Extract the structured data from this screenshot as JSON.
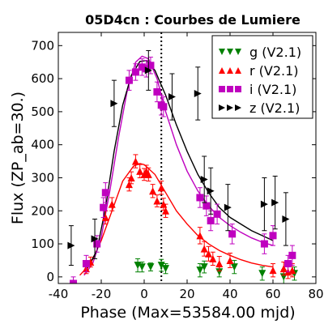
{
  "chart_data": {
    "type": "scatter",
    "title": "05D4cn : Courbes de Lumiere",
    "xlabel": "Phase (Max=53584.00 mjd)",
    "ylabel": "Flux (ZP_ab=30.)",
    "xlim": [
      -40,
      80
    ],
    "ylim": [
      -20,
      740
    ],
    "xticks": [
      -40,
      -20,
      0,
      20,
      40,
      60,
      80
    ],
    "yticks": [
      0,
      100,
      200,
      300,
      400,
      500,
      600,
      700
    ],
    "max_line_x": 8,
    "legend_position": "top-right",
    "series": [
      {
        "name": "g (V2.1)",
        "color": "#008000",
        "marker": "triangle-down",
        "points": [
          [
            -3,
            35
          ],
          [
            -1,
            30
          ],
          [
            3,
            30
          ],
          [
            8,
            35
          ],
          [
            10,
            25
          ],
          [
            26,
            20
          ],
          [
            28,
            30
          ],
          [
            35,
            15
          ],
          [
            42,
            30
          ],
          [
            55,
            10
          ],
          [
            65,
            0
          ],
          [
            70,
            10
          ]
        ],
        "errors": [
          20,
          15,
          12,
          18,
          15,
          20,
          18,
          15,
          20,
          20,
          22,
          20
        ]
      },
      {
        "name": "r (V2.1)",
        "color": "#ff0000",
        "marker": "triangle-up",
        "points": [
          [
            -27,
            25
          ],
          [
            -25,
            45
          ],
          [
            -18,
            180
          ],
          [
            -15,
            220
          ],
          [
            -7,
            280
          ],
          [
            -6,
            300
          ],
          [
            -4,
            350
          ],
          [
            -2,
            320
          ],
          [
            0,
            310
          ],
          [
            1,
            320
          ],
          [
            2,
            310
          ],
          [
            4,
            260
          ],
          [
            6,
            230
          ],
          [
            8,
            270
          ],
          [
            9,
            220
          ],
          [
            10,
            200
          ],
          [
            26,
            125
          ],
          [
            28,
            85
          ],
          [
            30,
            70
          ],
          [
            32,
            55
          ],
          [
            35,
            40
          ],
          [
            40,
            50
          ],
          [
            60,
            20
          ],
          [
            65,
            25
          ],
          [
            67,
            15
          ],
          [
            69,
            20
          ]
        ],
        "errors": [
          15,
          15,
          20,
          20,
          20,
          18,
          20,
          20,
          18,
          18,
          20,
          20,
          18,
          20,
          18,
          20,
          25,
          22,
          22,
          20,
          22,
          22,
          20,
          20,
          20,
          20
        ]
      },
      {
        "name": "i (V2.1)",
        "color": "#bf00bf",
        "marker": "square",
        "points": [
          [
            -33,
            -20
          ],
          [
            -27,
            40
          ],
          [
            -22,
            100
          ],
          [
            -19,
            210
          ],
          [
            -18,
            255
          ],
          [
            -7,
            595
          ],
          [
            -4,
            620
          ],
          [
            -1,
            635
          ],
          [
            1,
            630
          ],
          [
            3,
            640
          ],
          [
            6,
            560
          ],
          [
            8,
            520
          ],
          [
            9,
            515
          ],
          [
            26,
            240
          ],
          [
            29,
            215
          ],
          [
            31,
            170
          ],
          [
            34,
            190
          ],
          [
            41,
            130
          ],
          [
            56,
            100
          ],
          [
            60,
            125
          ],
          [
            67,
            40
          ],
          [
            69,
            65
          ]
        ],
        "errors": [
          20,
          25,
          25,
          30,
          30,
          30,
          25,
          25,
          25,
          25,
          30,
          30,
          30,
          30,
          30,
          30,
          30,
          30,
          30,
          30,
          25,
          30
        ]
      },
      {
        "name": "z (V2.1)",
        "color": "#000000",
        "marker": "triangle-right",
        "points": [
          [
            -34,
            95
          ],
          [
            -23,
            115
          ],
          [
            -14,
            525
          ],
          [
            2,
            625
          ],
          [
            13,
            545
          ],
          [
            25,
            555
          ],
          [
            28,
            295
          ],
          [
            31,
            260
          ],
          [
            39,
            210
          ],
          [
            56,
            220
          ],
          [
            61,
            225
          ],
          [
            66,
            175
          ]
        ],
        "errors": [
          60,
          60,
          70,
          60,
          70,
          80,
          70,
          70,
          70,
          80,
          80,
          80
        ]
      }
    ],
    "fits": [
      {
        "name": "r fit",
        "color": "#ff0000",
        "points": [
          [
            -30,
            5
          ],
          [
            -25,
            40
          ],
          [
            -20,
            110
          ],
          [
            -15,
            200
          ],
          [
            -10,
            290
          ],
          [
            -5,
            335
          ],
          [
            -2,
            343
          ],
          [
            0,
            340
          ],
          [
            5,
            310
          ],
          [
            10,
            255
          ],
          [
            15,
            200
          ],
          [
            20,
            160
          ],
          [
            25,
            125
          ],
          [
            30,
            100
          ],
          [
            35,
            80
          ],
          [
            40,
            65
          ],
          [
            45,
            52
          ],
          [
            50,
            42
          ],
          [
            55,
            35
          ],
          [
            60,
            30
          ]
        ]
      },
      {
        "name": "i fit",
        "color": "#bf00bf",
        "points": [
          [
            -28,
            5
          ],
          [
            -24,
            40
          ],
          [
            -20,
            120
          ],
          [
            -16,
            260
          ],
          [
            -12,
            420
          ],
          [
            -8,
            560
          ],
          [
            -4,
            650
          ],
          [
            -1,
            668
          ],
          [
            2,
            660
          ],
          [
            6,
            600
          ],
          [
            10,
            500
          ],
          [
            15,
            400
          ],
          [
            20,
            320
          ],
          [
            25,
            260
          ],
          [
            30,
            215
          ],
          [
            35,
            180
          ],
          [
            40,
            155
          ],
          [
            45,
            135
          ],
          [
            50,
            118
          ],
          [
            55,
            105
          ],
          [
            60,
            95
          ]
        ]
      },
      {
        "name": "z fit",
        "color": "#000000",
        "points": [
          [
            -27,
            20
          ],
          [
            -22,
            80
          ],
          [
            -18,
            210
          ],
          [
            -14,
            380
          ],
          [
            -10,
            520
          ],
          [
            -6,
            610
          ],
          [
            -2,
            652
          ],
          [
            1,
            655
          ],
          [
            5,
            625
          ],
          [
            10,
            550
          ],
          [
            15,
            460
          ],
          [
            20,
            380
          ],
          [
            25,
            310
          ],
          [
            30,
            255
          ],
          [
            35,
            210
          ],
          [
            40,
            180
          ],
          [
            45,
            160
          ],
          [
            50,
            140
          ],
          [
            55,
            125
          ],
          [
            60,
            110
          ]
        ]
      }
    ]
  }
}
